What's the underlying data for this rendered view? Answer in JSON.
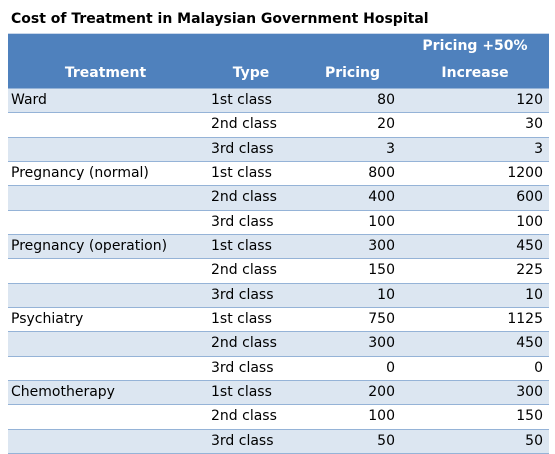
{
  "title": "Cost of Treatment in Malaysian Government Hospital",
  "columns": {
    "treatment": "Treatment",
    "type": "Type",
    "pricing": "Pricing",
    "increase_line1": "Pricing +50%",
    "increase_line2": "Increase"
  },
  "rows": [
    {
      "treatment": "Ward",
      "type": "1st class",
      "pricing": "80",
      "increase": "120"
    },
    {
      "treatment": "",
      "type": "2nd class",
      "pricing": "20",
      "increase": "30"
    },
    {
      "treatment": "",
      "type": "3rd class",
      "pricing": "3",
      "increase": "3"
    },
    {
      "treatment": "Pregnancy (normal)",
      "type": "1st class",
      "pricing": "800",
      "increase": "1200"
    },
    {
      "treatment": "",
      "type": "2nd class",
      "pricing": "400",
      "increase": "600"
    },
    {
      "treatment": "",
      "type": "3rd class",
      "pricing": "100",
      "increase": "100"
    },
    {
      "treatment": "Pregnancy (operation)",
      "type": "1st class",
      "pricing": "300",
      "increase": "450"
    },
    {
      "treatment": "",
      "type": "2nd class",
      "pricing": "150",
      "increase": "225"
    },
    {
      "treatment": "",
      "type": "3rd class",
      "pricing": "10",
      "increase": "10"
    },
    {
      "treatment": "Psychiatry",
      "type": "1st class",
      "pricing": "750",
      "increase": "1125"
    },
    {
      "treatment": "",
      "type": "2nd class",
      "pricing": "300",
      "increase": "450"
    },
    {
      "treatment": "",
      "type": "3rd class",
      "pricing": "0",
      "increase": "0"
    },
    {
      "treatment": "Chemotherapy",
      "type": "1st class",
      "pricing": "200",
      "increase": "300"
    },
    {
      "treatment": "",
      "type": "2nd class",
      "pricing": "100",
      "increase": "150"
    },
    {
      "treatment": "",
      "type": "3rd class",
      "pricing": "50",
      "increase": "50"
    }
  ]
}
